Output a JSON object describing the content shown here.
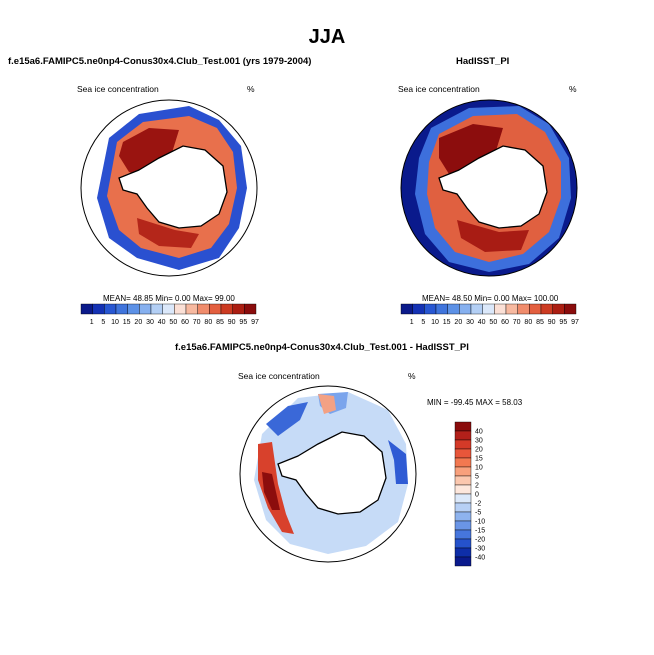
{
  "season": "JJA",
  "colors": {
    "ocean_dark": "#0a1a8c",
    "ice_dark": "#8c0d0d",
    "land": "#ffffff"
  },
  "panels": [
    {
      "title": "f.e15a6.FAMIPC5.ne0np4-Conus30x4.Club_Test.001 (yrs 1979-2004)",
      "variable": "Sea ice concentration",
      "units": "%",
      "stats": "MEAN=  48.85  Min=   0.00  Max=  99.00"
    },
    {
      "title": "HadISST_PI",
      "variable": "Sea ice concentration",
      "units": "%",
      "stats": "MEAN=  48.50  Min=   0.00  Max= 100.00"
    },
    {
      "title": "f.e15a6.FAMIPC5.ne0np4-Conus30x4.Club_Test.001 - HadISST_PI",
      "variable": "Sea ice concentration",
      "units": "%",
      "stats": "MIN = -99.45 MAX =  58.03"
    }
  ],
  "colorbar_abs": {
    "labels": [
      "1",
      "5",
      "10",
      "15",
      "20",
      "30",
      "40",
      "50",
      "60",
      "70",
      "80",
      "85",
      "90",
      "95",
      "97"
    ],
    "colors": [
      "#0b1a8a",
      "#1432b4",
      "#2857d2",
      "#3f74dc",
      "#5c91e6",
      "#86b0ef",
      "#b3cff5",
      "#dbe8fa",
      "#fbe0d6",
      "#f7b9a0",
      "#f08c6c",
      "#e35f3f",
      "#cc3b22",
      "#ab1e12",
      "#8a0c0c"
    ]
  },
  "colorbar_diff": {
    "labels": [
      "40",
      "30",
      "20",
      "15",
      "10",
      "5",
      "2",
      "0",
      "-2",
      "-5",
      "-10",
      "-15",
      "-20",
      "-30",
      "-40"
    ],
    "colors": [
      "#8a0c0c",
      "#b2201a",
      "#d43a28",
      "#e8563a",
      "#f27850",
      "#f8a07c",
      "#fbc7ae",
      "#fde7dc",
      "#dce9fa",
      "#b7d0f5",
      "#8eb3ee",
      "#6a95e6",
      "#4676dd",
      "#2552cc",
      "#0e2ea8",
      "#0a1a8c"
    ]
  }
}
